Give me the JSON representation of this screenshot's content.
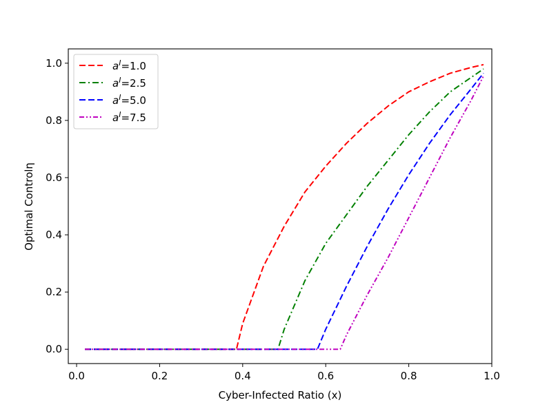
{
  "chart_data": {
    "type": "line",
    "title": "",
    "xlabel": "Cyber-Infected Ratio (x)",
    "ylabel": "Optimal Controlη",
    "xlim": [
      -0.02,
      1.0
    ],
    "ylim": [
      -0.05,
      1.05
    ],
    "xticks": [
      "0.0",
      "0.2",
      "0.4",
      "0.6",
      "0.8",
      "1.0"
    ],
    "yticks": [
      "0.0",
      "0.2",
      "0.4",
      "0.6",
      "0.8",
      "1.0"
    ],
    "grid": false,
    "legend_position": "top-left",
    "series": [
      {
        "name": "a^I=1.0",
        "legend_base": "a",
        "legend_sup": "I",
        "legend_value": "=1.0",
        "color": "#ff0000",
        "dash": "dashed",
        "x": [
          0.02,
          0.385,
          0.4,
          0.45,
          0.5,
          0.55,
          0.6,
          0.65,
          0.7,
          0.75,
          0.8,
          0.85,
          0.9,
          0.95,
          0.98
        ],
        "y": [
          0.0,
          0.0,
          0.09,
          0.29,
          0.43,
          0.55,
          0.64,
          0.72,
          0.79,
          0.85,
          0.9,
          0.935,
          0.965,
          0.985,
          0.995
        ]
      },
      {
        "name": "a^I=2.5",
        "legend_base": "a",
        "legend_sup": "I",
        "legend_value": "=2.5",
        "color": "#008000",
        "dash": "dashdot",
        "x": [
          0.02,
          0.485,
          0.5,
          0.55,
          0.6,
          0.65,
          0.7,
          0.75,
          0.8,
          0.85,
          0.9,
          0.95,
          0.98
        ],
        "y": [
          0.0,
          0.0,
          0.07,
          0.24,
          0.37,
          0.47,
          0.57,
          0.66,
          0.75,
          0.83,
          0.9,
          0.95,
          0.98
        ]
      },
      {
        "name": "a^I=5.0",
        "legend_base": "a",
        "legend_sup": "I",
        "legend_value": "=5.0",
        "color": "#0000ff",
        "dash": "dashed",
        "x": [
          0.02,
          0.58,
          0.6,
          0.65,
          0.7,
          0.75,
          0.8,
          0.85,
          0.9,
          0.95,
          0.98
        ],
        "y": [
          0.0,
          0.0,
          0.07,
          0.22,
          0.36,
          0.49,
          0.61,
          0.72,
          0.82,
          0.91,
          0.965
        ]
      },
      {
        "name": "a^I=7.5",
        "legend_base": "a",
        "legend_sup": "I",
        "legend_value": "=7.5",
        "color": "#bf00bf",
        "dash": "dashdotdot",
        "x": [
          0.02,
          0.635,
          0.65,
          0.7,
          0.75,
          0.8,
          0.85,
          0.9,
          0.95,
          0.98
        ],
        "y": [
          0.0,
          0.0,
          0.05,
          0.19,
          0.32,
          0.46,
          0.6,
          0.74,
          0.87,
          0.955
        ]
      }
    ]
  }
}
